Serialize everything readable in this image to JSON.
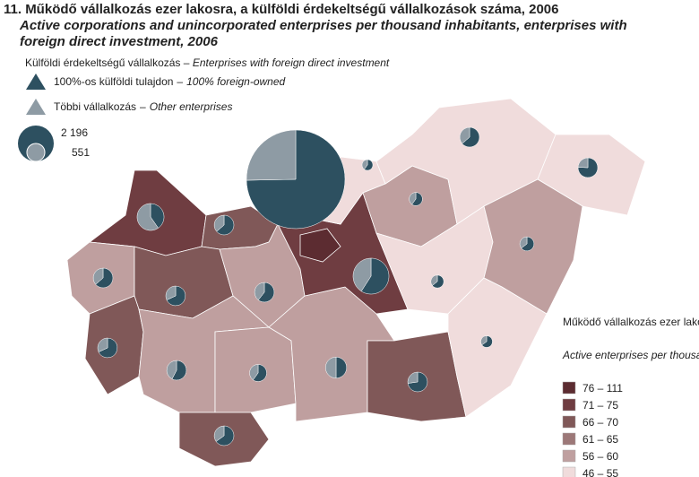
{
  "header": {
    "title": "11. Működő vállalkozás ezer lakosra, a külföldi érdekeltségű vállalkozások száma, 2006",
    "subtitle_1": "Active corporations and unincorporated enterprises per thousand inhabitants, enterprises with",
    "subtitle_2": "foreign direct investment,  2006"
  },
  "pie_legend": {
    "title_hu": "Külföldi érdekeltségű vállalkozás",
    "title_en": "Enterprises with foreign direct investment",
    "dash": "–",
    "items": [
      {
        "hu": "100%-os külföldi tulajdon",
        "en": "100% foreign-owned",
        "color": "#2d5060"
      },
      {
        "hu": "Többi vállalkozás",
        "en": "Other enterprises",
        "color": "#8e9ba4"
      }
    ]
  },
  "size_legend": [
    {
      "value": 2196,
      "label": "2 196"
    },
    {
      "value": 551,
      "label": "551"
    }
  ],
  "class_legend": {
    "title_hu": "Működő vállalkozás ezer lakosra",
    "title_en": "Active enterprises per thousands",
    "classes": [
      {
        "label": "76 – 111",
        "color": "#5c2c31"
      },
      {
        "label": "71 – 75",
        "color": "#6f3d41"
      },
      {
        "label": "66 – 70",
        "color": "#805858"
      },
      {
        "label": "61 – 65",
        "color": "#9c7878"
      },
      {
        "label": "56 – 60",
        "color": "#bf9f9f"
      },
      {
        "label": "46 – 55",
        "color": "#f0dcdc"
      }
    ]
  },
  "map": {
    "regions": [
      {
        "color": "#6f3d41",
        "foreign": 500,
        "other": 740
      },
      {
        "color": "#805858",
        "foreign": 420,
        "other": 240
      },
      {
        "color": "#bf9f9f",
        "foreign": 420,
        "other": 240
      },
      {
        "color": "#805858",
        "foreign": 450,
        "other": 210
      },
      {
        "color": "#bf9f9f",
        "foreign": 400,
        "other": 260
      },
      {
        "color": "#805858",
        "foreign": 450,
        "other": 210
      },
      {
        "color": "#bf9f9f",
        "foreign": 380,
        "other": 280
      },
      {
        "color": "#bf9f9f",
        "foreign": 300,
        "other": 200
      },
      {
        "color": "#805858",
        "foreign": 430,
        "other": 230
      },
      {
        "color": "#bf9f9f",
        "foreign": 380,
        "other": 380
      },
      {
        "color": "#6f3d41",
        "foreign": 1300,
        "other": 900
      },
      {
        "color": "#5c2c31",
        "foreign": 12400,
        "other": 4200
      },
      {
        "color": "#f0dcdc",
        "foreign": 120,
        "other": 80
      },
      {
        "color": "#bf9f9f",
        "foreign": 180,
        "other": 120
      },
      {
        "color": "#f0dcdc",
        "foreign": 420,
        "other": 240
      },
      {
        "color": "#f0dcdc",
        "foreign": 500,
        "other": 160
      },
      {
        "color": "#f0dcdc",
        "foreign": 180,
        "other": 100
      },
      {
        "color": "#bf9f9f",
        "foreign": 220,
        "other": 120
      },
      {
        "color": "#805858",
        "foreign": 480,
        "other": 180
      },
      {
        "color": "#f0dcdc",
        "foreign": 150,
        "other": 80
      }
    ]
  }
}
